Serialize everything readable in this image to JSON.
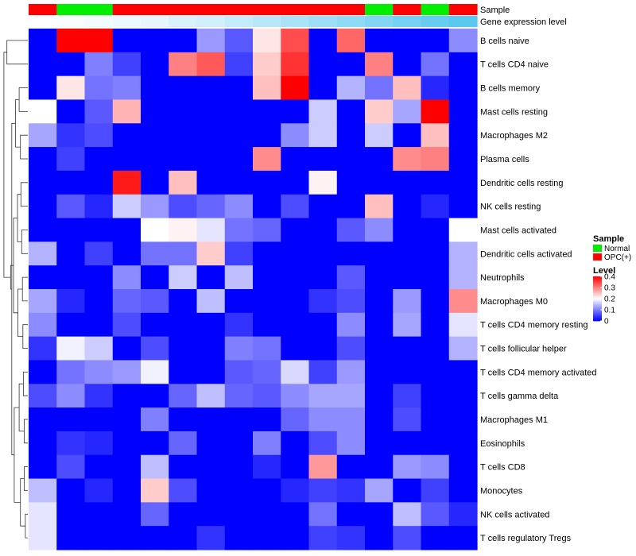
{
  "chart_data": {
    "type": "heatmap",
    "annotations": {
      "sample_label": "Sample",
      "level_label": "Gene expression level",
      "sample_groups": [
        "OPC(+)",
        "Normal",
        "Normal",
        "OPC(+)",
        "OPC(+)",
        "OPC(+)",
        "OPC(+)",
        "OPC(+)",
        "OPC(+)",
        "OPC(+)",
        "OPC(+)",
        "OPC(+)",
        "Normal",
        "OPC(+)",
        "Normal",
        "OPC(+)"
      ],
      "sample_group_colors": {
        "Normal": "#00ee00",
        "OPC(+)": "#ff0000"
      },
      "expression_levels": [
        0.0,
        0.01,
        0.02,
        0.03,
        0.04,
        0.06,
        0.07,
        0.09,
        0.11,
        0.13,
        0.15,
        0.17,
        0.19,
        0.21,
        0.23,
        0.25
      ]
    },
    "rows": [
      "B cells naive",
      "T cells CD4 naive",
      "B cells memory",
      "Mast cells resting",
      "Macrophages M2",
      "Plasma cells",
      "Dendritic cells resting",
      "NK cells resting",
      "Mast cells activated",
      "Dendritic cells activated",
      "Neutrophils",
      "Macrophages M0",
      "T cells CD4 memory resting",
      "T cells follicular helper",
      "T cells CD4 memory activated",
      "T cells gamma delta",
      "Macrophages M1",
      "Eosinophils",
      "T cells CD8",
      "Monocytes",
      "NK cells activated",
      "T cells regulatory  Tregs"
    ],
    "values": [
      [
        0.0,
        0.4,
        0.4,
        0.0,
        0.0,
        0.0,
        0.12,
        0.07,
        0.22,
        0.34,
        0.0,
        0.32,
        0.0,
        0.0,
        0.0,
        0.11
      ],
      [
        0.0,
        0.0,
        0.1,
        0.05,
        0.0,
        0.3,
        0.33,
        0.05,
        0.24,
        0.36,
        0.0,
        0.0,
        0.3,
        0.0,
        0.09,
        0.0
      ],
      [
        0.0,
        0.22,
        0.09,
        0.1,
        0.0,
        0.0,
        0.0,
        0.0,
        0.25,
        0.4,
        0.0,
        0.14,
        0.09,
        0.25,
        0.03,
        0.0
      ],
      [
        0.2,
        0.0,
        0.07,
        0.26,
        0.0,
        0.0,
        0.0,
        0.0,
        0.0,
        0.0,
        0.16,
        0.0,
        0.24,
        0.13,
        0.4,
        0.0
      ],
      [
        0.13,
        0.04,
        0.06,
        0.0,
        0.0,
        0.0,
        0.0,
        0.0,
        0.0,
        0.11,
        0.16,
        0.0,
        0.16,
        0.0,
        0.25,
        0.0
      ],
      [
        0.0,
        0.05,
        0.0,
        0.0,
        0.0,
        0.0,
        0.0,
        0.0,
        0.29,
        0.0,
        0.0,
        0.0,
        0.0,
        0.29,
        0.3,
        0.0
      ],
      [
        0.0,
        0.0,
        0.0,
        0.38,
        0.0,
        0.25,
        0.0,
        0.0,
        0.0,
        0.0,
        0.21,
        0.0,
        0.0,
        0.0,
        0.0,
        0.0
      ],
      [
        0.0,
        0.07,
        0.03,
        0.16,
        0.12,
        0.06,
        0.08,
        0.11,
        0.0,
        0.06,
        0.0,
        0.0,
        0.25,
        0.0,
        0.03,
        0.0
      ],
      [
        0.0,
        0.0,
        0.0,
        0.0,
        0.2,
        0.21,
        0.18,
        0.09,
        0.08,
        0.0,
        0.0,
        0.07,
        0.11,
        0.0,
        0.0,
        0.2
      ],
      [
        0.14,
        0.0,
        0.05,
        0.0,
        0.09,
        0.09,
        0.24,
        0.05,
        0.0,
        0.0,
        0.0,
        0.0,
        0.0,
        0.0,
        0.0,
        0.14
      ],
      [
        0.0,
        0.0,
        0.0,
        0.11,
        0.0,
        0.16,
        0.0,
        0.15,
        0.0,
        0.0,
        0.0,
        0.07,
        0.0,
        0.0,
        0.0,
        0.14
      ],
      [
        0.13,
        0.03,
        0.0,
        0.08,
        0.07,
        0.0,
        0.15,
        0.0,
        0.0,
        0.0,
        0.04,
        0.06,
        0.0,
        0.12,
        0.0,
        0.29
      ],
      [
        0.11,
        0.0,
        0.0,
        0.06,
        0.0,
        0.0,
        0.0,
        0.04,
        0.0,
        0.0,
        0.0,
        0.11,
        0.0,
        0.13,
        0.0,
        0.18
      ],
      [
        0.04,
        0.19,
        0.16,
        0.0,
        0.06,
        0.0,
        0.0,
        0.1,
        0.09,
        0.0,
        0.0,
        0.06,
        0.0,
        0.0,
        0.0,
        0.14
      ],
      [
        0.0,
        0.09,
        0.11,
        0.12,
        0.19,
        0.0,
        0.0,
        0.07,
        0.08,
        0.17,
        0.05,
        0.12,
        0.0,
        0.0,
        0.0,
        0.0
      ],
      [
        0.06,
        0.11,
        0.04,
        0.0,
        0.0,
        0.08,
        0.15,
        0.08,
        0.07,
        0.11,
        0.13,
        0.13,
        0.0,
        0.05,
        0.0,
        0.0
      ],
      [
        0.0,
        0.0,
        0.0,
        0.0,
        0.1,
        0.0,
        0.0,
        0.0,
        0.0,
        0.08,
        0.11,
        0.11,
        0.0,
        0.06,
        0.0,
        0.0
      ],
      [
        0.0,
        0.04,
        0.03,
        0.0,
        0.0,
        0.08,
        0.0,
        0.0,
        0.1,
        0.0,
        0.06,
        0.11,
        0.0,
        0.0,
        0.0,
        0.0
      ],
      [
        0.0,
        0.06,
        0.0,
        0.0,
        0.15,
        0.0,
        0.0,
        0.0,
        0.03,
        0.0,
        0.28,
        0.0,
        0.0,
        0.12,
        0.11,
        0.0
      ],
      [
        0.15,
        0.0,
        0.03,
        0.0,
        0.24,
        0.06,
        0.0,
        0.0,
        0.0,
        0.03,
        0.05,
        0.04,
        0.13,
        0.0,
        0.05,
        0.0
      ],
      [
        0.18,
        0.0,
        0.0,
        0.0,
        0.08,
        0.0,
        0.0,
        0.0,
        0.0,
        0.0,
        0.09,
        0.0,
        0.0,
        0.15,
        0.07,
        0.03
      ],
      [
        0.18,
        0.0,
        0.0,
        0.0,
        0.0,
        0.0,
        0.04,
        0.0,
        0.0,
        0.0,
        0.05,
        0.04,
        0.0,
        0.06,
        0.0,
        0.0
      ]
    ],
    "color_scale": {
      "min": 0,
      "mid": 0.2,
      "max": 0.4,
      "low_color": "#0000ff",
      "mid_color": "#ffffff",
      "high_color": "#ff0000"
    },
    "legend": {
      "placement": "right",
      "sample_title": "Sample",
      "sample_entries": [
        "Normal",
        "OPC(+)"
      ],
      "level_title": "Level",
      "level_ticks": [
        "0",
        "0.1",
        "0.2",
        "0.3",
        "0.4"
      ],
      "level_tick_values": [
        0,
        0.1,
        0.2,
        0.3,
        0.4
      ]
    },
    "level_annotation_colors": {
      "low": "#ffffff",
      "high": "#5bc8f0"
    }
  }
}
